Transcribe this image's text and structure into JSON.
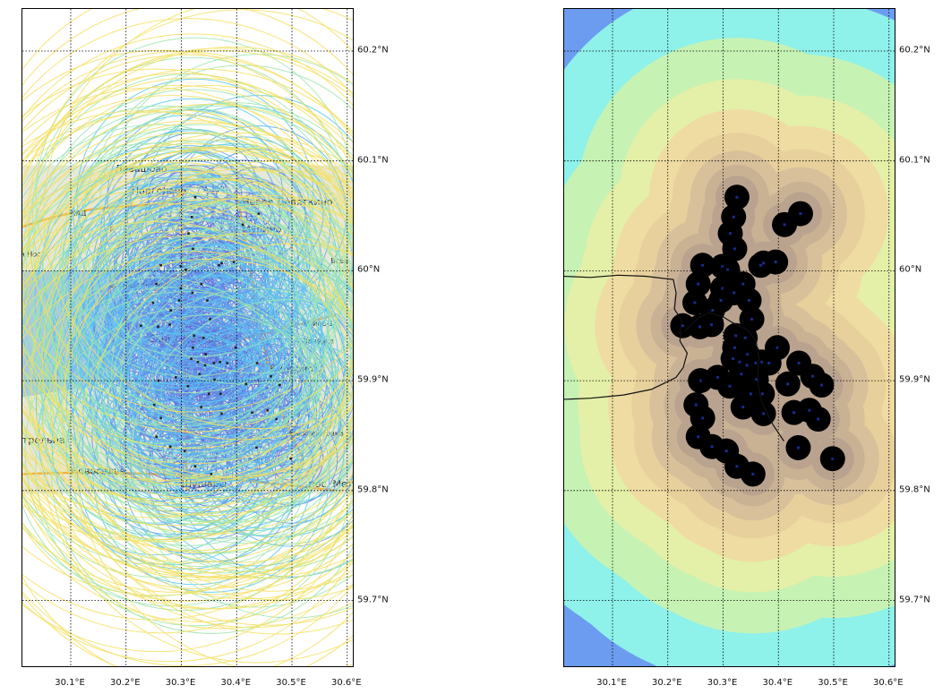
{
  "maps": [
    {
      "id": "left",
      "type": "basemap-with-contour-lines",
      "basemap_labels": [
        "Левашово",
        "Парголово",
        "Новое Девяткино",
        "Мурино",
        "Санкт-Петербург",
        "Кудрово",
        "Стрельна",
        "Шушары",
        "пос. Металлострой",
        "Новоселье",
        "Всев",
        "ий Нос",
        "оз. Лахтинское",
        "Заневка",
        "Янино-1",
        "Новосаратовка",
        "КАД",
        "А-118",
        "А-118",
        "А-118",
        "А-118",
        "А-120",
        "Р",
        "Р"
      ]
    },
    {
      "id": "right",
      "type": "filled-contour",
      "colors": [
        "#6c9cef",
        "#8ef1ea",
        "#c6f2b4",
        "#e4efa8",
        "#eedca2",
        "#e7d09b",
        "#d8c09b",
        "#c9b294",
        "#b9a38f"
      ]
    }
  ],
  "x_axis_labels": [
    "30.1°E",
    "30.2°E",
    "30.3°E",
    "30.4°E",
    "30.5°E",
    "30.6°E"
  ],
  "y_axis_labels": [
    "60.2°N",
    "60.1°N",
    "60°N",
    "59.9°N",
    "59.8°N",
    "59.7°N"
  ],
  "points": [
    [
      30.325,
      60.067
    ],
    [
      30.319,
      60.049
    ],
    [
      30.313,
      60.034
    ],
    [
      30.321,
      60.02
    ],
    [
      30.308,
      60.001
    ],
    [
      30.299,
      60.004
    ],
    [
      30.263,
      60.005
    ],
    [
      30.255,
      59.988
    ],
    [
      30.249,
      59.971
    ],
    [
      30.227,
      59.95
    ],
    [
      30.258,
      59.949
    ],
    [
      30.279,
      59.951
    ],
    [
      30.281,
      59.964
    ],
    [
      30.296,
      59.973
    ],
    [
      30.299,
      59.984
    ],
    [
      30.32,
      59.98
    ],
    [
      30.336,
      59.988
    ],
    [
      30.347,
      59.973
    ],
    [
      30.352,
      59.956
    ],
    [
      30.34,
      59.939
    ],
    [
      30.321,
      59.93
    ],
    [
      30.318,
      59.92
    ],
    [
      30.33,
      59.917
    ],
    [
      30.333,
      59.906
    ],
    [
      30.343,
      59.914
    ],
    [
      30.359,
      59.916
    ],
    [
      30.37,
      59.917
    ],
    [
      30.383,
      59.916
    ],
    [
      30.36,
      59.901
    ],
    [
      30.35,
      59.888
    ],
    [
      30.336,
      59.876
    ],
    [
      30.312,
      59.895
    ],
    [
      30.29,
      59.903
    ],
    [
      30.259,
      59.9
    ],
    [
      30.251,
      59.878
    ],
    [
      30.263,
      59.866
    ],
    [
      30.255,
      59.849
    ],
    [
      30.28,
      59.84
    ],
    [
      30.306,
      59.836
    ],
    [
      30.325,
      59.822
    ],
    [
      30.354,
      59.815
    ],
    [
      30.373,
      59.87
    ],
    [
      30.371,
      59.888
    ],
    [
      30.398,
      59.93
    ],
    [
      30.417,
      59.897
    ],
    [
      30.437,
      59.916
    ],
    [
      30.462,
      59.904
    ],
    [
      30.478,
      59.896
    ],
    [
      30.456,
      59.873
    ],
    [
      30.472,
      59.865
    ],
    [
      30.428,
      59.871
    ],
    [
      30.436,
      59.839
    ],
    [
      30.498,
      59.829
    ],
    [
      30.368,
      60.005
    ],
    [
      30.373,
      60.007
    ],
    [
      30.411,
      60.042
    ],
    [
      30.44,
      60.052
    ],
    [
      30.395,
      60.008
    ],
    [
      30.323,
      59.941
    ],
    [
      30.344,
      59.924
    ]
  ],
  "coastline": [
    [
      30.01,
      59.995
    ],
    [
      30.06,
      59.994
    ],
    [
      30.11,
      59.996
    ],
    [
      30.16,
      59.995
    ],
    [
      30.21,
      59.992
    ],
    [
      30.215,
      59.98
    ],
    [
      30.212,
      59.965
    ],
    [
      30.225,
      59.955
    ],
    [
      30.222,
      59.936
    ],
    [
      30.235,
      59.925
    ],
    [
      30.228,
      59.912
    ],
    [
      30.215,
      59.903
    ],
    [
      30.195,
      59.898
    ],
    [
      30.17,
      59.892
    ],
    [
      30.12,
      59.887
    ],
    [
      30.06,
      59.884
    ],
    [
      30.01,
      59.883
    ]
  ],
  "neva": [
    [
      30.23,
      59.945
    ],
    [
      30.255,
      59.957
    ],
    [
      30.275,
      59.962
    ],
    [
      30.3,
      59.958
    ],
    [
      30.32,
      59.952
    ],
    [
      30.345,
      59.946
    ],
    [
      30.36,
      59.935
    ],
    [
      30.365,
      59.92
    ],
    [
      30.362,
      59.9
    ],
    [
      30.37,
      59.88
    ],
    [
      30.39,
      59.86
    ],
    [
      30.41,
      59.845
    ]
  ]
}
